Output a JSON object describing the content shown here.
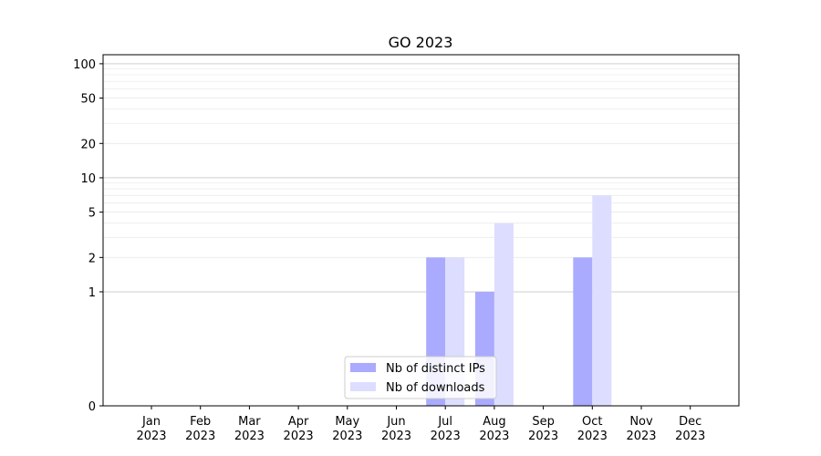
{
  "chart_data": {
    "type": "bar",
    "title": "GO 2023",
    "xlabel": "",
    "ylabel": "",
    "yscale": "symlog",
    "ylim": [
      0,
      120
    ],
    "yticks": [
      0,
      1,
      2,
      5,
      10,
      20,
      50,
      100
    ],
    "grid": true,
    "legend_position": "lower-center",
    "categories": [
      "Jan\n2023",
      "Feb\n2023",
      "Mar\n2023",
      "Apr\n2023",
      "May\n2023",
      "Jun\n2023",
      "Jul\n2023",
      "Aug\n2023",
      "Sep\n2023",
      "Oct\n2023",
      "Nov\n2023",
      "Dec\n2023"
    ],
    "series": [
      {
        "name": "Nb of distinct IPs",
        "color": "#aaaaff",
        "values": [
          0,
          0,
          0,
          0,
          0,
          0,
          2,
          1,
          0,
          2,
          0,
          0
        ]
      },
      {
        "name": "Nb of downloads",
        "color": "#ddddff",
        "values": [
          0,
          0,
          0,
          0,
          0,
          0,
          2,
          4,
          0,
          7,
          0,
          0
        ]
      }
    ]
  }
}
